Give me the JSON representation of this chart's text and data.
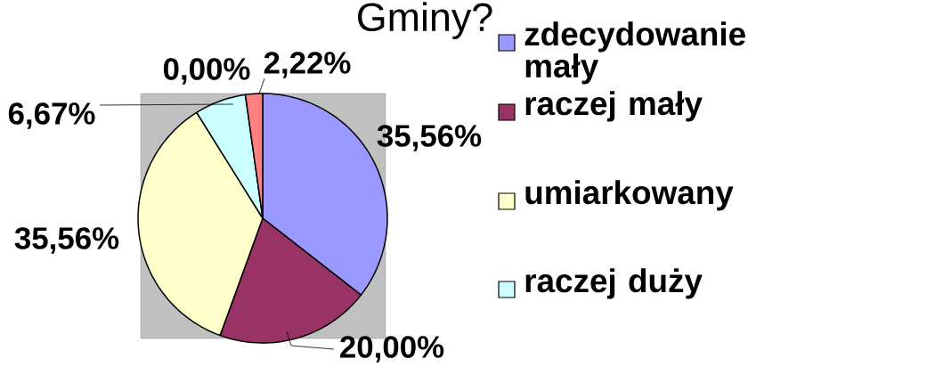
{
  "chart_data": {
    "type": "pie",
    "title": "Gminy?",
    "categories": [
      "zdecydowanie mały",
      "raczej mały",
      "umiarkowany",
      "raczej duży",
      null,
      null
    ],
    "values": [
      35.56,
      20.0,
      35.56,
      6.67,
      0.0,
      2.22
    ],
    "colors": [
      "#9999ff",
      "#993366",
      "#ffffcc",
      "#ccffff",
      "#660066",
      "#ff8080"
    ],
    "value_labels": [
      "35,56%",
      "20,00%",
      "35,56%",
      "6,67%",
      "0,00%",
      "2,22%"
    ],
    "legend": "right"
  }
}
